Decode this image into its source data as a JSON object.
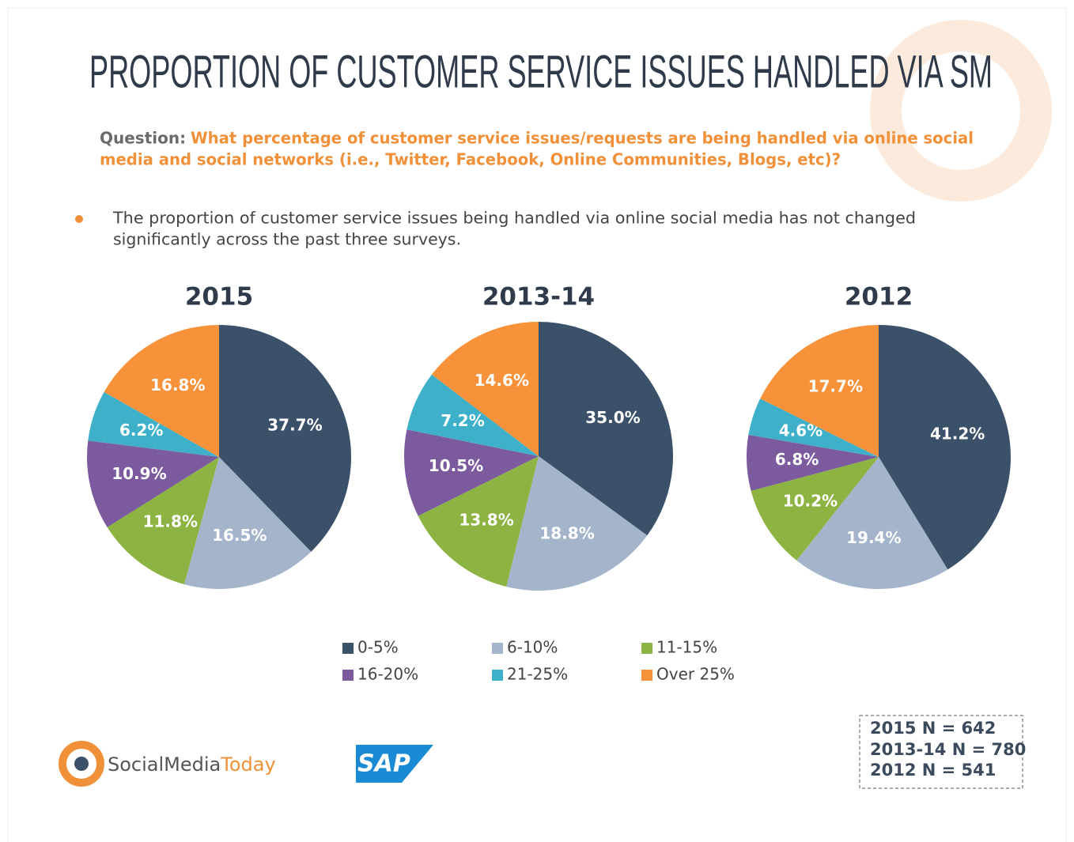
{
  "title": "PROPORTION OF CUSTOMER SERVICE ISSUES HANDLED VIA SM",
  "question_label": "Question:",
  "question": [
    "What percentage of customer service  issues/requests are being handled via online social",
    "media and social networks (i.e., Twitter, Facebook, Online Communities, Blogs, etc)?"
  ],
  "bullet": [
    "The proportion of customer service issues being handled via online social media has not changed",
    "significantly across the past three surveys."
  ],
  "sample_sizes": [
    "2015 N = 642",
    "2013-14 N = 780",
    "2012 N = 541"
  ],
  "logos": [
    "SocialMedia",
    "Today",
    "SAP"
  ],
  "chart_data": [
    {
      "type": "pie",
      "title": "2015",
      "categories": [
        "0-5%",
        "6-10%",
        "11-15%",
        "16-20%",
        "21-25%",
        "Over 25%"
      ],
      "colors": [
        "#3b5169",
        "#a3b4cb",
        "#8db443",
        "#7b5b9e",
        "#3fb0c9",
        "#f7923a"
      ],
      "values": [
        37.7,
        16.5,
        11.8,
        10.9,
        6.2,
        16.8
      ],
      "value_labels": [
        "37.7%",
        "16.5%",
        "11.8%",
        "10.9%",
        "6.2%",
        "16.8%"
      ]
    },
    {
      "type": "pie",
      "title": "2013-14",
      "categories": [
        "0-5%",
        "6-10%",
        "11-15%",
        "16-20%",
        "21-25%",
        "Over 25%"
      ],
      "colors": [
        "#3b5169",
        "#a3b4cb",
        "#8db443",
        "#7b5b9e",
        "#3fb0c9",
        "#f7923a"
      ],
      "values": [
        35.0,
        18.8,
        13.8,
        10.5,
        7.2,
        14.6
      ],
      "value_labels": [
        "35.0%",
        "18.8%",
        "13.8%",
        "10.5%",
        "7.2%",
        "14.6%"
      ]
    },
    {
      "type": "pie",
      "title": "2012",
      "categories": [
        "0-5%",
        "6-10%",
        "11-15%",
        "16-20%",
        "21-25%",
        "Over 25%"
      ],
      "colors": [
        "#3b5169",
        "#a3b4cb",
        "#8db443",
        "#7b5b9e",
        "#3fb0c9",
        "#f7923a"
      ],
      "values": [
        41.2,
        19.4,
        10.2,
        6.8,
        4.6,
        17.7
      ],
      "value_labels": [
        "41.2%",
        "19.4%",
        "10.2%",
        "6.8%",
        "4.6%",
        "17.7%"
      ]
    }
  ]
}
